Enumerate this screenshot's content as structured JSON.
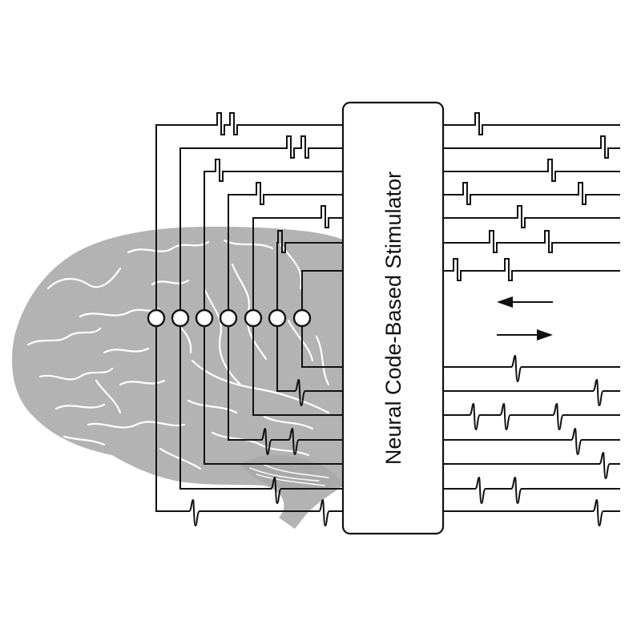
{
  "stimulator": {
    "label": "Neural Code-Based Stimulator"
  },
  "electrodes": {
    "count": 7
  },
  "signals": {
    "stimulation_pattern": "biphasic square pulses",
    "recorded_pattern": "spike waveforms"
  },
  "direction_arrows": [
    "left",
    "right"
  ],
  "colors": {
    "line": "#111111",
    "brain_fill": "#b3b3b3",
    "brain_sulci": "#ffffff",
    "box_fill": "#ffffff",
    "background": "#ffffff"
  }
}
